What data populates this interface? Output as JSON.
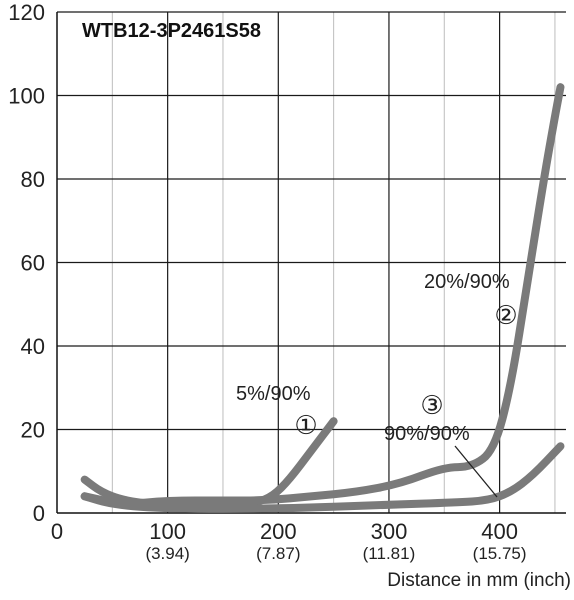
{
  "chart_data": {
    "type": "line",
    "title": "WTB12-3P2461S58",
    "xlabel": "Distance in mm (inch)",
    "ylabel": "",
    "xlim": [
      0,
      460
    ],
    "ylim": [
      0,
      120
    ],
    "grid": true,
    "x_ticks": [
      {
        "value": 0,
        "label": "0",
        "sub": ""
      },
      {
        "value": 100,
        "label": "100",
        "sub": "(3.94)"
      },
      {
        "value": 200,
        "label": "200",
        "sub": "(7.87)"
      },
      {
        "value": 300,
        "label": "300",
        "sub": "(11.81)"
      },
      {
        "value": 400,
        "label": "400",
        "sub": "(15.75)"
      }
    ],
    "y_ticks": [
      0,
      20,
      40,
      60,
      80,
      100,
      120
    ],
    "series": [
      {
        "label": "5%/90%",
        "marker": "①",
        "color": "#7a7a7a",
        "points": [
          [
            25,
            8
          ],
          [
            40,
            5
          ],
          [
            60,
            3
          ],
          [
            90,
            2
          ],
          [
            140,
            2
          ],
          [
            180,
            2.5
          ],
          [
            195,
            4
          ],
          [
            210,
            8
          ],
          [
            230,
            15
          ],
          [
            250,
            22
          ]
        ]
      },
      {
        "label": "20%/90%",
        "marker": "②",
        "color": "#7a7a7a",
        "points": [
          [
            25,
            4
          ],
          [
            60,
            2
          ],
          [
            100,
            3
          ],
          [
            150,
            3
          ],
          [
            190,
            3
          ],
          [
            230,
            4
          ],
          [
            270,
            5
          ],
          [
            310,
            7
          ],
          [
            350,
            11
          ],
          [
            375,
            11
          ],
          [
            395,
            15
          ],
          [
            410,
            30
          ],
          [
            425,
            55
          ],
          [
            440,
            80
          ],
          [
            450,
            95
          ],
          [
            455,
            102
          ]
        ]
      },
      {
        "label": "90%/90%",
        "marker": "③",
        "color": "#7a7a7a",
        "points": [
          [
            25,
            4
          ],
          [
            50,
            2
          ],
          [
            100,
            1
          ],
          [
            200,
            1
          ],
          [
            300,
            2
          ],
          [
            360,
            2.5
          ],
          [
            390,
            3
          ],
          [
            410,
            5
          ],
          [
            430,
            9
          ],
          [
            455,
            16
          ]
        ]
      }
    ]
  }
}
